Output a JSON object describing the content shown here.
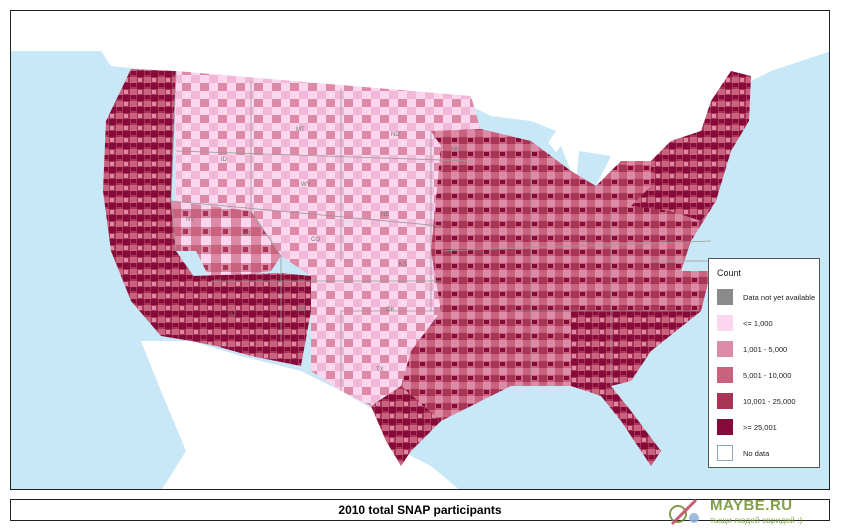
{
  "map": {
    "colors": {
      "water": "#c8e8f7",
      "land_other": "#ffffff",
      "border": "#9a9a9a"
    },
    "state_labels": [
      "MT",
      "ND",
      "ID",
      "WY",
      "NV",
      "UT",
      "NE",
      "KS",
      "CO",
      "AZ",
      "NM",
      "OK",
      "TX",
      "MN"
    ]
  },
  "legend": {
    "title": "Count",
    "items": [
      {
        "label": "Data not yet available",
        "color": "#8a8a8a"
      },
      {
        "label": "<= 1,000",
        "color": "#fcd6ee"
      },
      {
        "label": "1,001 - 5,000",
        "color": "#dc8aa6"
      },
      {
        "label": "5,001 - 10,000",
        "color": "#c8627f"
      },
      {
        "label": "10,001 - 25,000",
        "color": "#a83456"
      },
      {
        "label": ">= 25,001",
        "color": "#860a3a"
      },
      {
        "label": "No data",
        "color": "#ffffff"
      }
    ]
  },
  "caption": {
    "title": "2010 total SNAP participants"
  },
  "watermark": {
    "title": "MAYBE.RU",
    "subtitle": "тыщи людей эвридей :)"
  }
}
